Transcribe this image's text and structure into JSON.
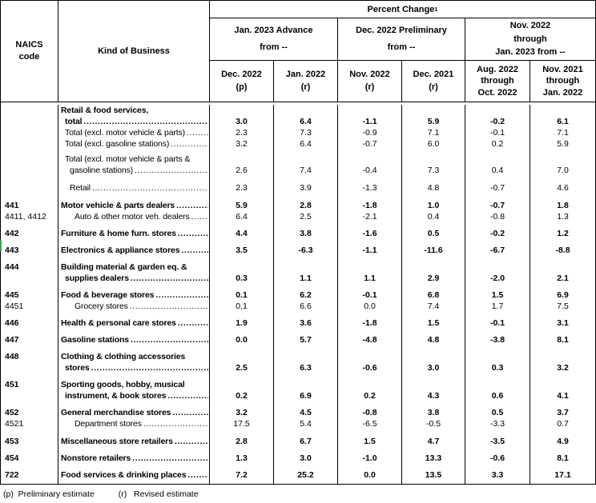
{
  "header": {
    "naics_lines": [
      "NAICS",
      "code"
    ],
    "kind_of_business": "Kind of Business",
    "percent_change": "Percent Change",
    "percent_change_footnote": "1",
    "groups": [
      {
        "lines": [
          "Jan. 2023 Advance",
          "from --"
        ]
      },
      {
        "lines": [
          "Dec. 2022 Preliminary",
          "from --"
        ]
      },
      {
        "lines": [
          "Nov. 2022",
          "through",
          "Jan. 2023 from --"
        ]
      }
    ],
    "columns": [
      {
        "lines": [
          "Dec. 2022",
          "(p)"
        ]
      },
      {
        "lines": [
          "Jan. 2022",
          "(r)"
        ]
      },
      {
        "lines": [
          "Nov. 2022",
          "(r)"
        ]
      },
      {
        "lines": [
          "Dec. 2021",
          "(r)"
        ]
      },
      {
        "lines": [
          "Aug. 2022",
          "through",
          "Oct. 2022"
        ]
      },
      {
        "lines": [
          "Nov. 2021",
          "through",
          "Jan. 2022"
        ]
      }
    ]
  },
  "rows": [
    {
      "code": "",
      "bold": true,
      "gap": 0,
      "lines": [
        {
          "t": "Retail & food services,",
          "i": 0,
          "leader": false
        },
        {
          "t": "total",
          "i": 1,
          "leader": true
        }
      ],
      "values": [
        "3.0",
        "6.4",
        "-1.1",
        "5.9",
        "-0.2",
        "6.1"
      ]
    },
    {
      "code": "",
      "bold": false,
      "gap": 0,
      "lines": [
        {
          "t": "Total (excl. motor vehicle & parts)",
          "i": 1,
          "leader": true
        }
      ],
      "values": [
        "2.3",
        "7.3",
        "-0.9",
        "7.1",
        "-0.1",
        "7.1"
      ]
    },
    {
      "code": "",
      "bold": false,
      "gap": 0,
      "lines": [
        {
          "t": "Total (excl. gasoline stations)",
          "i": 1,
          "leader": true
        }
      ],
      "values": [
        "3.2",
        "6.4",
        "-0.7",
        "6.0",
        "0.2",
        "5.9"
      ]
    },
    {
      "code": "",
      "bold": false,
      "gap": 5,
      "lines": [
        {
          "t": "Total (excl. motor vehicle & parts &",
          "i": 1,
          "leader": false
        },
        {
          "t": "gasoline stations)",
          "i": 2,
          "leader": true
        }
      ],
      "values": [
        "2.6",
        "7.4",
        "-0.4",
        "7.3",
        "0.4",
        "7.0"
      ]
    },
    {
      "code": "",
      "bold": false,
      "gap": 8,
      "lines": [
        {
          "t": "Retail",
          "i": 2,
          "leader": true
        }
      ],
      "values": [
        "2.3",
        "3.9",
        "-1.3",
        "4.8",
        "-0.7",
        "4.6"
      ]
    },
    {
      "code": "441",
      "bold": true,
      "gap": 8,
      "lines": [
        {
          "t": "Motor vehicle & parts dealers",
          "i": 0,
          "leader": true
        }
      ],
      "values": [
        "5.9",
        "2.8",
        "-1.8",
        "1.0",
        "-0.7",
        "1.8"
      ]
    },
    {
      "code": "4411, 4412",
      "bold": false,
      "gap": 0,
      "lines": [
        {
          "t": "Auto & other motor veh. dealers",
          "i": 3,
          "leader": true
        }
      ],
      "values": [
        "6.4",
        "2.5",
        "-2.1",
        "0.4",
        "-0.8",
        "1.3"
      ]
    },
    {
      "code": "442",
      "bold": true,
      "gap": 7,
      "lines": [
        {
          "t": "Furniture & home furn. stores",
          "i": 0,
          "leader": true
        }
      ],
      "values": [
        "4.4",
        "3.8",
        "-1.6",
        "0.5",
        "-0.2",
        "1.2"
      ]
    },
    {
      "code": "443",
      "bold": true,
      "gap": 7,
      "lines": [
        {
          "t": "Electronics & appliance stores",
          "i": 0,
          "leader": true
        }
      ],
      "values": [
        "3.5",
        "-6.3",
        "-1.1",
        "-11.6",
        "-6.7",
        "-8.8"
      ]
    },
    {
      "code": "444",
      "bold": true,
      "gap": 7,
      "lines": [
        {
          "t": "Building material & garden eq. &",
          "i": 0,
          "leader": false
        },
        {
          "t": "supplies dealers",
          "i": 1,
          "leader": true
        }
      ],
      "values": [
        "0.3",
        "1.1",
        "1.1",
        "2.9",
        "-2.0",
        "2.1"
      ]
    },
    {
      "code": "445",
      "bold": true,
      "gap": 7,
      "lines": [
        {
          "t": "Food & beverage stores",
          "i": 0,
          "leader": true
        }
      ],
      "values": [
        "0.1",
        "6.2",
        "-0.1",
        "6.8",
        "1.5",
        "6.9"
      ]
    },
    {
      "code": "4451",
      "bold": false,
      "gap": 0,
      "lines": [
        {
          "t": "Grocery stores",
          "i": 3,
          "leader": true
        }
      ],
      "values": [
        "0.1",
        "6.6",
        "0.0",
        "7.4",
        "1.7",
        "7.5"
      ]
    },
    {
      "code": "446",
      "bold": true,
      "gap": 7,
      "lines": [
        {
          "t": "Health & personal care stores",
          "i": 0,
          "leader": true
        }
      ],
      "values": [
        "1.9",
        "3.6",
        "-1.8",
        "1.5",
        "-0.1",
        "3.1"
      ]
    },
    {
      "code": "447",
      "bold": true,
      "gap": 7,
      "lines": [
        {
          "t": "Gasoline stations",
          "i": 0,
          "leader": true
        }
      ],
      "values": [
        "0.0",
        "5.7",
        "-4.8",
        "4.8",
        "-3.8",
        "8.1"
      ]
    },
    {
      "code": "448",
      "bold": true,
      "gap": 7,
      "lines": [
        {
          "t": "Clothing & clothing accessories",
          "i": 0,
          "leader": false
        },
        {
          "t": "stores",
          "i": 1,
          "leader": true
        }
      ],
      "values": [
        "2.5",
        "6.3",
        "-0.6",
        "3.0",
        "0.3",
        "3.2"
      ]
    },
    {
      "code": "451",
      "bold": true,
      "gap": 7,
      "lines": [
        {
          "t": "Sporting goods, hobby, musical",
          "i": 0,
          "leader": false
        },
        {
          "t": "instrument, & book stores",
          "i": 1,
          "leader": true
        }
      ],
      "values": [
        "0.2",
        "6.9",
        "0.2",
        "4.3",
        "0.6",
        "4.1"
      ]
    },
    {
      "code": "452",
      "bold": true,
      "gap": 7,
      "lines": [
        {
          "t": "General merchandise stores",
          "i": 0,
          "leader": true
        }
      ],
      "values": [
        "3.2",
        "4.5",
        "-0.8",
        "3.8",
        "0.5",
        "3.7"
      ]
    },
    {
      "code": "4521",
      "bold": false,
      "gap": 0,
      "lines": [
        {
          "t": "Department stores",
          "i": 3,
          "leader": true
        }
      ],
      "values": [
        "17.5",
        "5.4",
        "-6.5",
        "-0.5",
        "-3.3",
        "0.7"
      ]
    },
    {
      "code": "453",
      "bold": true,
      "gap": 8,
      "lines": [
        {
          "t": "Miscellaneous store retailers",
          "i": 0,
          "leader": true
        }
      ],
      "values": [
        "2.8",
        "6.7",
        "1.5",
        "4.7",
        "-3.5",
        "4.9"
      ]
    },
    {
      "code": "454",
      "bold": true,
      "gap": 7,
      "lines": [
        {
          "t": "Nonstore retailers",
          "i": 0,
          "leader": true
        }
      ],
      "values": [
        "1.3",
        "3.0",
        "-1.0",
        "13.3",
        "-0.6",
        "8.1"
      ]
    },
    {
      "code": "722",
      "bold": true,
      "gap": 7,
      "lines": [
        {
          "t": "Food services & drinking places",
          "i": 0,
          "leader": true
        }
      ],
      "values": [
        "7.2",
        "25.2",
        "0.0",
        "13.5",
        "3.3",
        "17.1"
      ]
    }
  ],
  "footer": {
    "p_note": "(p)  Preliminary estimate",
    "r_note": "(r)   Revised estimate"
  }
}
